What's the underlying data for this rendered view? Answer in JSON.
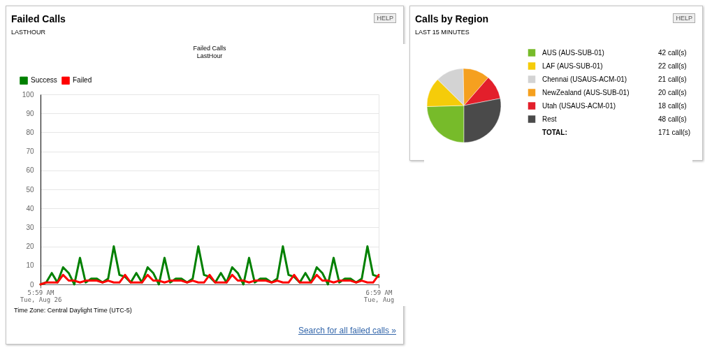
{
  "chart_data": [
    {
      "type": "line",
      "title": "Failed Calls",
      "subtitle": "LASTHOUR",
      "annotations": [
        "Failed Calls",
        "LastHour",
        "Time Zone: Central Daylight Time (UTC-5)",
        "Search for all failed calls »",
        "HELP"
      ],
      "x": [
        "--08-26T05:59",
        "--08-26T06:00",
        "--08-26T06:01",
        "--08-26T06:02",
        "--08-26T06:03",
        "--08-26T06:04",
        "--08-26T06:05",
        "--08-26T06:06",
        "--08-26T06:07",
        "--08-26T06:08",
        "--08-26T06:09",
        "--08-26T06:10",
        "--08-26T06:11",
        "--08-26T06:12",
        "--08-26T06:13",
        "--08-26T06:14",
        "--08-26T06:15",
        "--08-26T06:16",
        "--08-26T06:17",
        "--08-26T06:18",
        "--08-26T06:19",
        "--08-26T06:20",
        "--08-26T06:21",
        "--08-26T06:22",
        "--08-26T06:23",
        "--08-26T06:24",
        "--08-26T06:25",
        "--08-26T06:26",
        "--08-26T06:27",
        "--08-26T06:28",
        "--08-26T06:29",
        "--08-26T06:30",
        "--08-26T06:31",
        "--08-26T06:32",
        "--08-26T06:33",
        "--08-26T06:34",
        "--08-26T06:35",
        "--08-26T06:36",
        "--08-26T06:37",
        "--08-26T06:38",
        "--08-26T06:39",
        "--08-26T06:40",
        "--08-26T06:41",
        "--08-26T06:42",
        "--08-26T06:43",
        "--08-26T06:44",
        "--08-26T06:45",
        "--08-26T06:46",
        "--08-26T06:47",
        "--08-26T06:48",
        "--08-26T06:49",
        "--08-26T06:50",
        "--08-26T06:51",
        "--08-26T06:52",
        "--08-26T06:53",
        "--08-26T06:54",
        "--08-26T06:55",
        "--08-26T06:56",
        "--08-26T06:57",
        "--08-26T06:58",
        "--08-26T06:59"
      ],
      "series": [
        {
          "name": "Success",
          "color": "#008000",
          "values": [
            0,
            1,
            6,
            1,
            9,
            6,
            0,
            14,
            1,
            3,
            3,
            1,
            3,
            20,
            5,
            4,
            1,
            6,
            1,
            9,
            6,
            0,
            14,
            1,
            3,
            3,
            1,
            3,
            20,
            5,
            4,
            1,
            6,
            1,
            9,
            6,
            0,
            14,
            1,
            3,
            3,
            1,
            3,
            20,
            5,
            4,
            1,
            6,
            1,
            9,
            6,
            0,
            14,
            1,
            3,
            3,
            1,
            3,
            20,
            5,
            4
          ]
        },
        {
          "name": "Failed",
          "color": "#ff0000",
          "values": [
            0,
            1,
            1,
            1,
            5,
            2,
            2,
            1,
            2,
            2,
            2,
            1,
            2,
            1,
            1,
            5,
            1,
            1,
            1,
            5,
            2,
            2,
            1,
            2,
            2,
            2,
            1,
            2,
            1,
            1,
            5,
            1,
            1,
            1,
            5,
            2,
            2,
            1,
            2,
            2,
            2,
            1,
            2,
            1,
            1,
            5,
            1,
            1,
            1,
            5,
            2,
            2,
            1,
            2,
            2,
            2,
            1,
            2,
            1,
            1,
            5
          ]
        }
      ],
      "xlim": [
        "--08-26T05:59",
        "--08-26T06:59"
      ],
      "xticks": [
        {
          "value": "--08-26T05:59",
          "label": "5:59 AM\nTue, Aug 26"
        },
        {
          "value": "--08-26T06:59",
          "label": "6:59 AM\nTue, Aug"
        }
      ],
      "ylim": [
        0,
        100
      ],
      "yticks": [
        0,
        10,
        20,
        30,
        40,
        50,
        60,
        70,
        80,
        90,
        100
      ],
      "grid": true,
      "legend": "top left"
    },
    {
      "type": "pie",
      "title": "Calls by Region",
      "subtitle": "LAST 15 MINUTES",
      "categories": [
        "AUS (AUS-SUB-01)",
        "LAF (AUS-SUB-01)",
        "Chennai (USAUS-ACM-01)",
        "NewZealand (AUS-SUB-01)",
        "Utah (USAUS-ACM-01)",
        "Rest"
      ],
      "values": [
        42,
        22,
        21,
        20,
        18,
        48
      ],
      "colors": [
        "#77bb2a",
        "#f5cc0a",
        "#d3d3d3",
        "#f5a01f",
        "#e31f2b",
        "#4a4a4a"
      ],
      "value_labels": [
        "42 call(s)",
        "22 call(s)",
        "21 call(s)",
        "20 call(s)",
        "18 call(s)",
        "48 call(s)"
      ],
      "annotations": [
        "TOTAL:",
        "171 call(s)",
        "HELP"
      ],
      "legend": "right"
    }
  ]
}
